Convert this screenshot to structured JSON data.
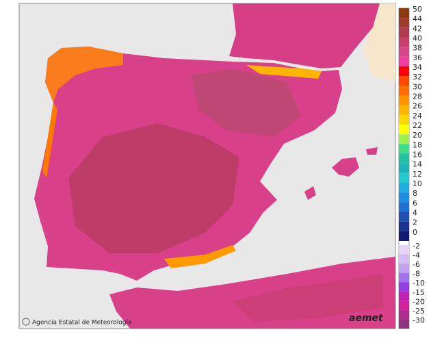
{
  "map": {
    "credit": "Agencia Estatal de Meteorología",
    "logo": "aemet",
    "legend_upper": [
      {
        "label": "50",
        "color": "#8b3a12"
      },
      {
        "label": "44",
        "color": "#9e3b2c"
      },
      {
        "label": "42",
        "color": "#b03c4e"
      },
      {
        "label": "40",
        "color": "#c63e6c"
      },
      {
        "label": "38",
        "color": "#d8468a"
      },
      {
        "label": "36",
        "color": "#f03ea0"
      },
      {
        "label": "34",
        "color": "#ff0000"
      },
      {
        "label": "32",
        "color": "#ff4a00"
      },
      {
        "label": "30",
        "color": "#ff6e00"
      },
      {
        "label": "28",
        "color": "#ff9200"
      },
      {
        "label": "26",
        "color": "#ffb400"
      },
      {
        "label": "24",
        "color": "#ffd600"
      },
      {
        "label": "22",
        "color": "#ffff00"
      },
      {
        "label": "20",
        "color": "#9cf04a"
      },
      {
        "label": "18",
        "color": "#3ede84"
      },
      {
        "label": "16",
        "color": "#20c2a2"
      },
      {
        "label": "14",
        "color": "#1eb4b4"
      },
      {
        "label": "12",
        "color": "#22c8d2"
      },
      {
        "label": "10",
        "color": "#20aee2"
      },
      {
        "label": "8",
        "color": "#208ee0"
      },
      {
        "label": "6",
        "color": "#2070d2"
      },
      {
        "label": "4",
        "color": "#2050b2"
      },
      {
        "label": "2",
        "color": "#1a3292"
      },
      {
        "label": "0",
        "color": "#101a72"
      }
    ],
    "legend_lower": [
      {
        "label": "-2",
        "color": "#e4d6f4"
      },
      {
        "label": "-4",
        "color": "#d2bcf2"
      },
      {
        "label": "-6",
        "color": "#c0a2f0"
      },
      {
        "label": "-8",
        "color": "#a272f0"
      },
      {
        "label": "-10",
        "color": "#9040e2"
      },
      {
        "label": "-15",
        "color": "#c022b2"
      },
      {
        "label": "-20",
        "color": "#d0229e"
      },
      {
        "label": "-25",
        "color": "#b02a90"
      },
      {
        "label": "-30",
        "color": "#903482"
      }
    ]
  }
}
